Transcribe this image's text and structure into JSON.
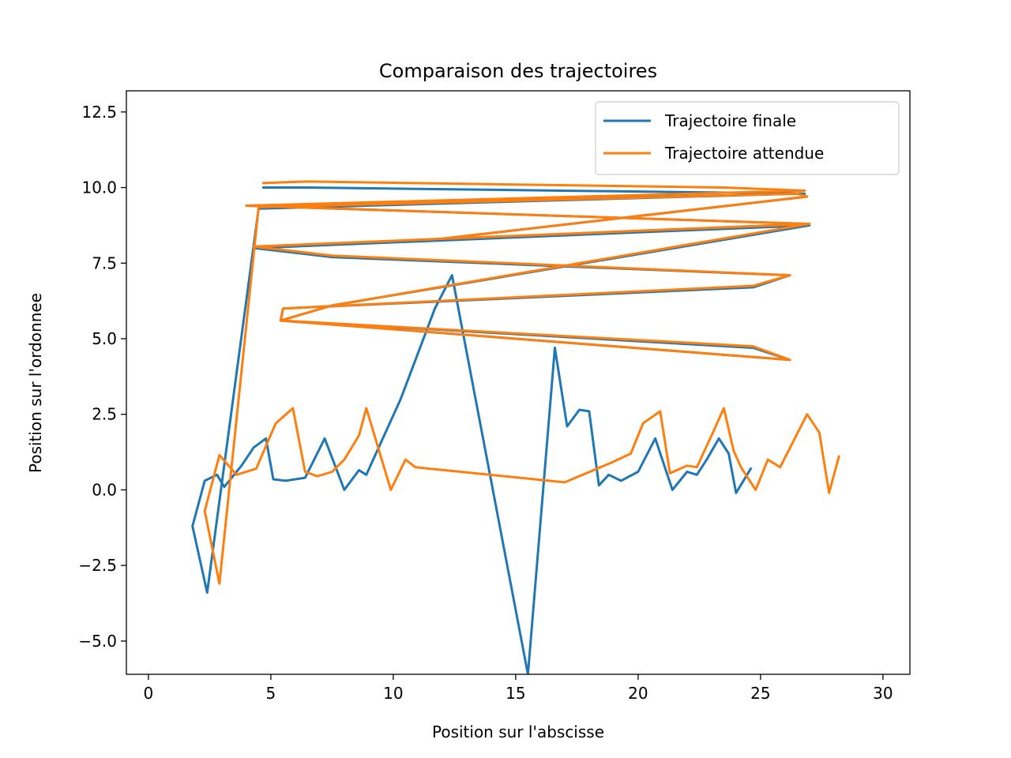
{
  "chart_data": {
    "type": "line",
    "title": "Comparaison des trajectoires",
    "xlabel": "Position sur l'abscisse",
    "ylabel": "Position sur l'ordonnee",
    "xlim": [
      -0.9,
      31.1
    ],
    "ylim": [
      -6.1,
      13.2
    ],
    "xticks": [
      0,
      5,
      10,
      15,
      20,
      25,
      30
    ],
    "xtick_labels": [
      "0",
      "5",
      "10",
      "15",
      "20",
      "25",
      "30"
    ],
    "yticks": [
      -5.0,
      -2.5,
      0.0,
      2.5,
      5.0,
      7.5,
      10.0,
      12.5
    ],
    "ytick_labels": [
      "−5.0",
      "−2.5",
      "0.0",
      "2.5",
      "5.0",
      "7.5",
      "10.0",
      "12.5"
    ],
    "grid": false,
    "legend_position": "top-right",
    "series": [
      {
        "name": "Trajectoire finale",
        "color": "#1f77b4",
        "x": [
          4.7,
          6.5,
          26.8,
          4.0,
          26.9,
          4.3,
          7.5,
          26.2,
          24.7,
          5.5,
          5.4,
          26.2,
          24.7,
          5.4,
          7.5,
          27.0,
          4.4,
          11.9,
          26.9,
          26.5,
          4.5,
          2.4,
          1.8,
          2.0,
          2.3,
          2.8,
          3.1,
          3.8,
          4.3,
          4.8,
          5.1,
          5.6,
          6.4,
          7.2,
          8.0,
          8.6,
          8.9,
          10.3,
          11.7,
          12.4,
          15.5,
          16.6,
          17.1,
          17.6,
          18.0,
          18.4,
          18.8,
          19.3,
          20.0,
          20.7,
          21.4,
          22.0,
          22.4,
          22.8,
          23.3,
          23.7,
          24.0,
          24.6
        ],
        "y": [
          10.0,
          10.0,
          9.8,
          9.4,
          8.8,
          8.0,
          7.7,
          7.1,
          6.7,
          6.0,
          5.6,
          4.3,
          4.7,
          5.6,
          6.1,
          8.75,
          8.0,
          8.3,
          9.7,
          9.8,
          9.3,
          -3.4,
          -1.2,
          -0.6,
          0.3,
          0.5,
          0.1,
          0.8,
          1.4,
          1.7,
          0.35,
          0.3,
          0.4,
          1.7,
          0.0,
          0.65,
          0.5,
          3.0,
          6.0,
          7.1,
          -6.1,
          4.7,
          2.1,
          2.65,
          2.6,
          0.15,
          0.5,
          0.3,
          0.6,
          1.7,
          0.0,
          0.6,
          0.5,
          1.0,
          1.7,
          1.2,
          -0.1,
          0.7
        ]
      },
      {
        "name": "Trajectoire attendue",
        "color": "#ff7f0e",
        "x": [
          4.7,
          6.5,
          23.5,
          26.8,
          4.0,
          26.9,
          4.3,
          7.5,
          26.2,
          24.7,
          5.5,
          5.4,
          26.2,
          24.7,
          5.4,
          7.5,
          27.0,
          4.4,
          11.9,
          26.9,
          26.5,
          4.5,
          2.9,
          2.3,
          2.9,
          3.6,
          4.4,
          5.2,
          5.9,
          6.4,
          6.9,
          7.5,
          8.0,
          8.6,
          8.9,
          9.9,
          10.5,
          10.9,
          17.0,
          18.9,
          19.7,
          20.2,
          20.9,
          21.3,
          22.0,
          22.4,
          23.0,
          23.5,
          23.9,
          24.2,
          24.8,
          25.3,
          25.8,
          26.9,
          27.4,
          27.8,
          28.2
        ],
        "y": [
          10.15,
          10.2,
          10.0,
          9.9,
          9.4,
          8.8,
          8.05,
          7.75,
          7.1,
          6.75,
          6.0,
          5.6,
          4.3,
          4.75,
          5.6,
          6.1,
          8.8,
          8.05,
          8.3,
          9.7,
          9.8,
          9.35,
          -3.1,
          -0.7,
          1.15,
          0.5,
          0.7,
          2.2,
          2.7,
          0.6,
          0.45,
          0.6,
          1.0,
          1.8,
          2.7,
          0.0,
          1.0,
          0.75,
          0.25,
          0.9,
          1.2,
          2.2,
          2.6,
          0.55,
          0.8,
          0.75,
          1.8,
          2.7,
          1.3,
          0.75,
          0.0,
          1.0,
          0.75,
          2.5,
          1.9,
          -0.1,
          1.1
        ]
      }
    ]
  }
}
